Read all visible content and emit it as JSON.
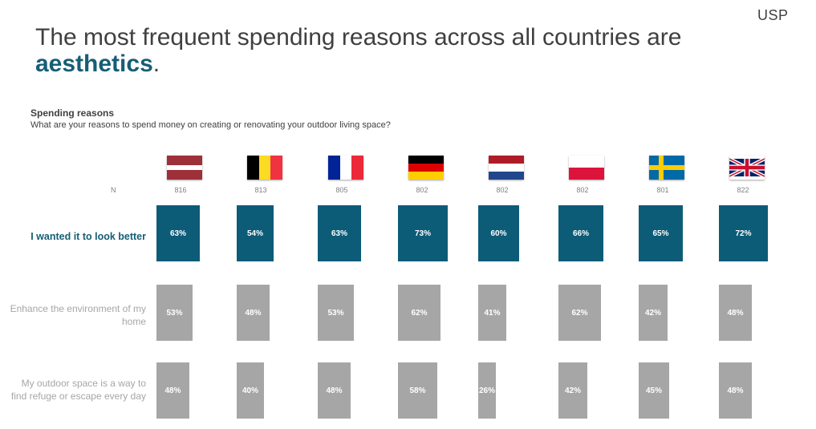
{
  "logo": "USP",
  "title_prefix": "The most frequent spending reasons across all countries are ",
  "title_highlight": "aesthetics",
  "title_suffix": ".",
  "subtitle": "Spending reasons",
  "question": "What are your reasons to spend money on creating or renovating your outdoor living space?",
  "n_label": "N",
  "countries": [
    {
      "flag": "latvia-flag",
      "n": "816"
    },
    {
      "flag": "belgium-flag",
      "n": "813"
    },
    {
      "flag": "france-flag",
      "n": "805"
    },
    {
      "flag": "germany-flag",
      "n": "802"
    },
    {
      "flag": "netherlands-flag",
      "n": "802"
    },
    {
      "flag": "poland-flag",
      "n": "802"
    },
    {
      "flag": "sweden-flag",
      "n": "801"
    },
    {
      "flag": "uk-flag",
      "n": "822"
    }
  ],
  "colors": {
    "highlight": "#0c5c78",
    "muted": "#a6a6a6",
    "title_highlight": "#165e76"
  },
  "chart_data": {
    "type": "bar",
    "categories": [
      "816",
      "813",
      "805",
      "802",
      "802",
      "802",
      "801",
      "822"
    ],
    "series": [
      {
        "name": "I wanted it to look better",
        "values": [
          63,
          54,
          63,
          73,
          60,
          66,
          65,
          72
        ],
        "labels": [
          "63%",
          "54%",
          "63%",
          "73%",
          "60%",
          "66%",
          "65%",
          "72%"
        ],
        "highlighted": true
      },
      {
        "name": "Enhance the environment of my home",
        "values": [
          53,
          48,
          53,
          62,
          41,
          62,
          42,
          48
        ],
        "labels": [
          "53%",
          "48%",
          "53%",
          "62%",
          "41%",
          "62%",
          "42%",
          "48%"
        ],
        "highlighted": false
      },
      {
        "name": "My outdoor space is a way to find refuge or escape every day",
        "values": [
          48,
          40,
          48,
          58,
          26,
          42,
          45,
          48
        ],
        "labels": [
          "48%",
          "40%",
          "48%",
          "58%",
          "26%",
          "42%",
          "45%",
          "48%"
        ],
        "highlighted": false
      }
    ]
  }
}
